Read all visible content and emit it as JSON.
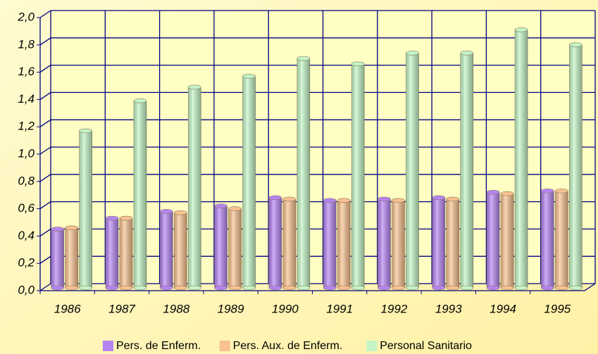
{
  "chart_data": {
    "type": "bar",
    "categories": [
      "1986",
      "1987",
      "1988",
      "1989",
      "1990",
      "1991",
      "1992",
      "1993",
      "1994",
      "1995"
    ],
    "series": [
      {
        "name": "Pers. de Enferm.",
        "color": "#b584f2",
        "values": [
          0.43,
          0.51,
          0.56,
          0.6,
          0.66,
          0.64,
          0.65,
          0.66,
          0.7,
          0.71
        ]
      },
      {
        "name": "Pers. Aux. de Enferm.",
        "color": "#f8c18e",
        "values": [
          0.44,
          0.51,
          0.55,
          0.58,
          0.65,
          0.64,
          0.64,
          0.65,
          0.69,
          0.71
        ]
      },
      {
        "name": "Personal Sanitario",
        "color": "#c3f5c6",
        "values": [
          1.15,
          1.37,
          1.47,
          1.55,
          1.68,
          1.64,
          1.72,
          1.72,
          1.89,
          1.78
        ]
      }
    ],
    "ylim": [
      0,
      2
    ],
    "yticks": [
      {
        "value": 0,
        "label": "0,0"
      },
      {
        "value": 0.2,
        "label": "0,2"
      },
      {
        "value": 0.4,
        "label": "0,4"
      },
      {
        "value": 0.6,
        "label": "0,6"
      },
      {
        "value": 0.8,
        "label": "0,8"
      },
      {
        "value": 1.0,
        "label": "1,0"
      },
      {
        "value": 1.2,
        "label": "1,2"
      },
      {
        "value": 1.4,
        "label": "1,4"
      },
      {
        "value": 1.6,
        "label": "1,6"
      },
      {
        "value": 1.8,
        "label": "1,8"
      },
      {
        "value": 2.0,
        "label": "2,0"
      }
    ],
    "grid": true,
    "legend": "bottom"
  }
}
